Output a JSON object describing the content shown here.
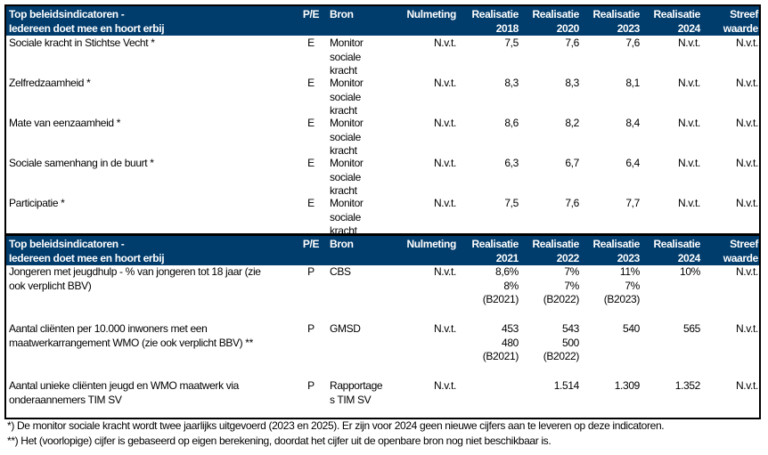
{
  "table1": {
    "header": [
      "Top beleidsindicatoren -\nIedereen doet mee en hoort erbij",
      "P/E",
      "Bron",
      "Nulmeting",
      "Realisatie\n2018",
      "Realisatie\n2020",
      "Realisatie\n2023",
      "Realisatie\n2024",
      "Streef\nwaarde"
    ],
    "rows": [
      [
        "Sociale kracht in Stichtse Vecht *",
        "E",
        "Monitor\nsociale\nkracht",
        "N.v.t.",
        "7,5",
        "7,6",
        "7,6",
        "N.v.t.",
        "N.v.t."
      ],
      [
        "Zelfredzaamheid *",
        "E",
        "Monitor\nsociale\nkracht",
        "N.v.t.",
        "8,3",
        "8,3",
        "8,1",
        "N.v.t.",
        "N.v.t."
      ],
      [
        "Mate van eenzaamheid *",
        "E",
        "Monitor\nsociale\nkracht",
        "N.v.t.",
        "8,6",
        "8,2",
        "8,4",
        "N.v.t.",
        "N.v.t."
      ],
      [
        "Sociale samenhang in de buurt *",
        "E",
        "Monitor\nsociale\nkracht",
        "N.v.t.",
        "6,3",
        "6,7",
        "6,4",
        "N.v.t.",
        "N.v.t."
      ],
      [
        "Participatie *",
        "E",
        "Monitor\nsociale\nkracht",
        "N.v.t.",
        "7,5",
        "7,6",
        "7,7",
        "N.v.t.",
        "N.v.t."
      ]
    ]
  },
  "table2": {
    "header": [
      "Top beleidsindicatoren -\nIedereen doet mee en hoort erbij",
      "P/E",
      "Bron",
      "Nulmeting",
      "Realisatie\n2021",
      "Realisatie\n2022",
      "Realisatie\n2023",
      "Realisatie\n2024",
      "Streef\nwaarde"
    ],
    "rows": [
      [
        "Jongeren met jeugdhulp - % van jongeren tot 18 jaar (zie\nook verplicht BBV)",
        "P",
        "CBS",
        "N.v.t.",
        "8,6%\n8%\n(B2021)",
        "7%\n7%\n(B2022)",
        "11%\n7%\n(B2023)",
        "10%",
        "N.v.t."
      ],
      [
        "Aantal cliënten per 10.000 inwoners met een\nmaatwerkarrangement WMO (zie ook verplicht BBV) **",
        "P",
        "GMSD",
        "N.v.t.",
        "453\n480\n(B2021)",
        "543\n500\n(B2022)",
        "540",
        "565",
        "N.v.t."
      ],
      [
        "Aantal unieke cliënten jeugd en WMO maatwerk via\nonderaannemers TIM SV",
        "P",
        "Rapportage\ns TIM SV",
        "N.v.t.",
        "",
        "1.514",
        "1.309",
        "1.352",
        "N.v.t."
      ]
    ]
  },
  "footnotes": [
    "*) De monitor sociale kracht wordt twee jaarlijks uitgevoerd (2023 en 2025). Er zijn voor 2024 geen nieuwe cijfers aan te leveren op deze indicatoren.",
    "**) Het (voorlopige) cijfer is gebaseerd op eigen berekening, doordat het cijfer uit de openbare bron nog niet beschikbaar is."
  ],
  "colors": {
    "header_bg": "#003c6c",
    "header_text": "#ffffff",
    "border": "#000000"
  }
}
